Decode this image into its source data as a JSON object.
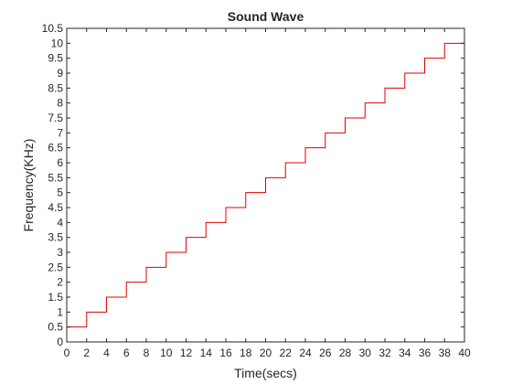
{
  "chart_data": {
    "type": "line",
    "title": "Sound Wave",
    "xlabel": "Time(secs)",
    "ylabel": "Frequency(KHz)",
    "xlim": [
      0,
      40
    ],
    "ylim": [
      0,
      10.5
    ],
    "x_ticks": [
      0,
      2,
      4,
      6,
      8,
      10,
      12,
      14,
      16,
      18,
      20,
      22,
      24,
      26,
      28,
      30,
      32,
      34,
      36,
      38,
      40
    ],
    "y_ticks": [
      "0",
      "0.5",
      "1",
      "1.5",
      "2",
      "2.5",
      "3",
      "3.5",
      "4",
      "4.5",
      "5",
      "5.5",
      "6",
      "6.5",
      "7",
      "7.5",
      "8",
      "8.5",
      "9",
      "9.5",
      "10",
      "10.5"
    ],
    "grid": false,
    "series": [
      {
        "color": "#e00000",
        "step": "post",
        "x": [
          0,
          2,
          4,
          6,
          8,
          10,
          12,
          14,
          16,
          18,
          20,
          22,
          24,
          26,
          28,
          30,
          32,
          34,
          36,
          38,
          40
        ],
        "y": [
          0.5,
          1,
          1.5,
          2,
          2.5,
          3,
          3.5,
          4,
          4.5,
          5,
          5.5,
          6,
          6.5,
          7,
          7.5,
          8,
          8.5,
          9,
          9.5,
          10,
          10
        ]
      }
    ]
  }
}
